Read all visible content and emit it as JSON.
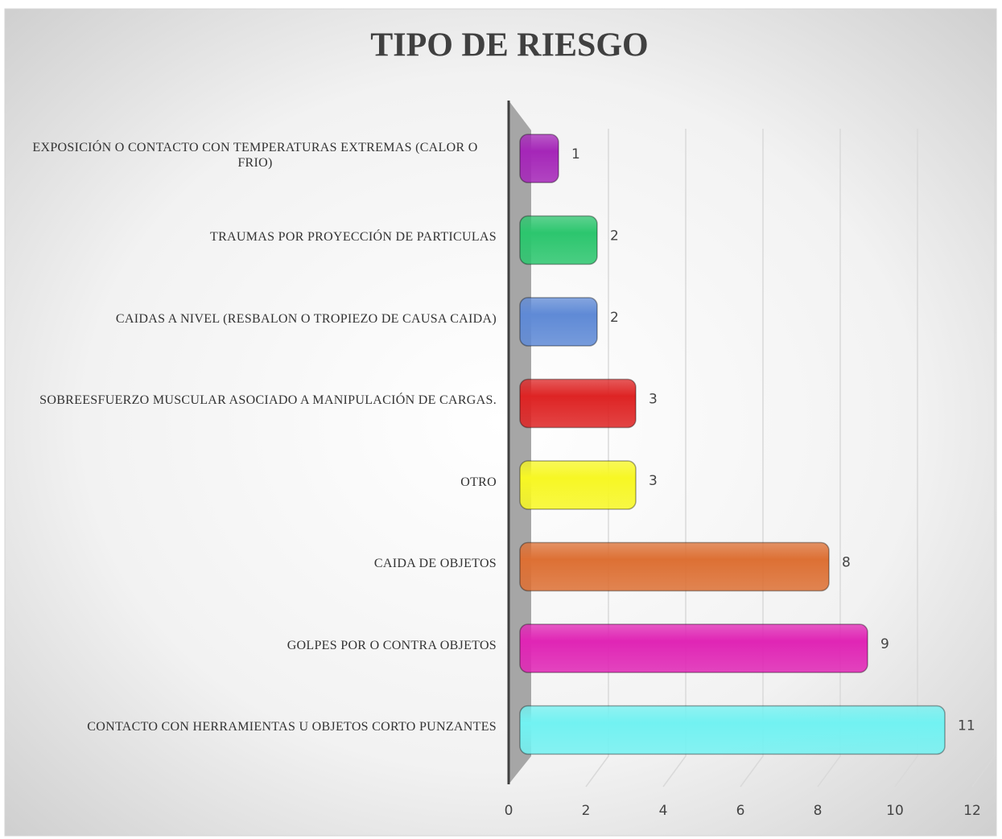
{
  "chart_data": {
    "type": "bar",
    "orientation": "horizontal",
    "title": "TIPO DE RIESGO",
    "categories": [
      "EXPOSICIÓN O CONTACTO CON TEMPERATURAS EXTREMAS (CALOR O FRIO)",
      "TRAUMAS POR PROYECCIÓN DE PARTICULAS",
      "CAIDAS A NIVEL (RESBALON O TROPIEZO DE CAUSA CAIDA)",
      "SOBREESFUERZO MUSCULAR ASOCIADO A MANIPULACIÓN DE CARGAS.",
      "OTRO",
      "CAIDA DE OBJETOS",
      "GOLPES POR O CONTRA OBJETOS",
      "CONTACTO CON HERRAMIENTAS U OBJETOS CORTO PUNZANTES"
    ],
    "values": [
      1,
      2,
      2,
      3,
      3,
      8,
      9,
      11
    ],
    "colors": [
      "#a526b8",
      "#2cc66e",
      "#5f8ad6",
      "#de2424",
      "#f7f724",
      "#dd7034",
      "#e025b5",
      "#72f2f2"
    ],
    "xlim": [
      0,
      12
    ],
    "xticks": [
      0,
      2,
      4,
      6,
      8,
      10,
      12
    ],
    "grid": true
  }
}
